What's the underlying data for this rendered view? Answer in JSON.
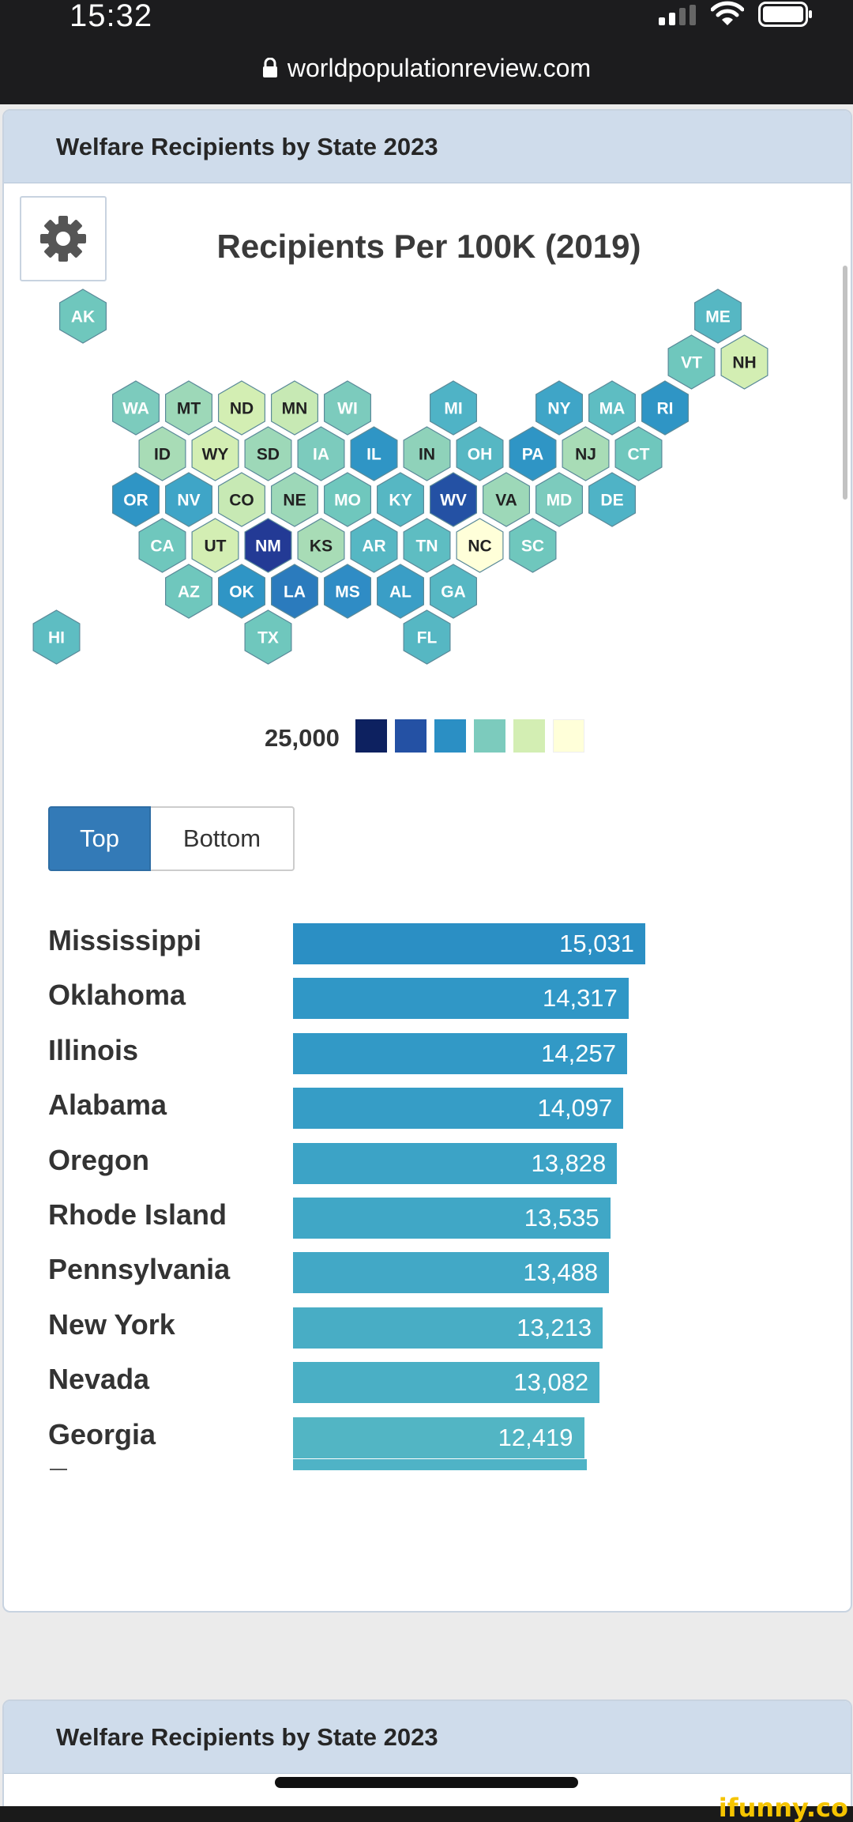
{
  "status_bar": {
    "time": "15:32"
  },
  "browser": {
    "url": "worldpopulationreview.com"
  },
  "card": {
    "title": "Welfare Recipients by State 2023",
    "map_title": "Recipients Per 100K (2019)",
    "legend_label": "25,000",
    "legend_colors": [
      "#0d2160",
      "#2451a4",
      "#2b8fc4",
      "#7ccbbd",
      "#d3eeb3",
      "#ffffd9"
    ],
    "toggle": {
      "top_label": "Top",
      "bottom_label": "Bottom",
      "active": "Top"
    }
  },
  "hex_map": {
    "states": [
      {
        "abbr": "AK",
        "color": "#6fc7bd",
        "text": "#ffffff"
      },
      {
        "abbr": "ME",
        "color": "#56b7c3",
        "text": "#ffffff"
      },
      {
        "abbr": "VT",
        "color": "#6fc7bd",
        "text": "#ffffff"
      },
      {
        "abbr": "NH",
        "color": "#d3eeb3",
        "text": "#222222"
      },
      {
        "abbr": "WA",
        "color": "#7ccbbd",
        "text": "#ffffff"
      },
      {
        "abbr": "MT",
        "color": "#9dd8b8",
        "text": "#222222"
      },
      {
        "abbr": "ND",
        "color": "#d3eeb3",
        "text": "#222222"
      },
      {
        "abbr": "MN",
        "color": "#c7e9b4",
        "text": "#222222"
      },
      {
        "abbr": "WI",
        "color": "#7ccbbd",
        "text": "#ffffff"
      },
      {
        "abbr": "MI",
        "color": "#4fb3c6",
        "text": "#ffffff"
      },
      {
        "abbr": "NY",
        "color": "#3fa5c7",
        "text": "#ffffff"
      },
      {
        "abbr": "MA",
        "color": "#5ebdc2",
        "text": "#ffffff"
      },
      {
        "abbr": "RI",
        "color": "#2f95c5",
        "text": "#ffffff"
      },
      {
        "abbr": "ID",
        "color": "#a8dcb6",
        "text": "#222222"
      },
      {
        "abbr": "WY",
        "color": "#d3eeb3",
        "text": "#222222"
      },
      {
        "abbr": "SD",
        "color": "#9dd8b8",
        "text": "#222222"
      },
      {
        "abbr": "IA",
        "color": "#7ccbbd",
        "text": "#ffffff"
      },
      {
        "abbr": "IL",
        "color": "#2f95c5",
        "text": "#ffffff"
      },
      {
        "abbr": "IN",
        "color": "#8fd2ba",
        "text": "#222222"
      },
      {
        "abbr": "OH",
        "color": "#56b7c3",
        "text": "#ffffff"
      },
      {
        "abbr": "PA",
        "color": "#2f95c5",
        "text": "#ffffff"
      },
      {
        "abbr": "NJ",
        "color": "#a8dcb6",
        "text": "#222222"
      },
      {
        "abbr": "CT",
        "color": "#6fc7bd",
        "text": "#ffffff"
      },
      {
        "abbr": "OR",
        "color": "#2f95c5",
        "text": "#ffffff"
      },
      {
        "abbr": "NV",
        "color": "#3fa5c7",
        "text": "#ffffff"
      },
      {
        "abbr": "CO",
        "color": "#c7e9b4",
        "text": "#222222"
      },
      {
        "abbr": "NE",
        "color": "#9dd8b8",
        "text": "#222222"
      },
      {
        "abbr": "MO",
        "color": "#6fc7bd",
        "text": "#ffffff"
      },
      {
        "abbr": "KY",
        "color": "#56b7c3",
        "text": "#ffffff"
      },
      {
        "abbr": "WV",
        "color": "#2451a4",
        "text": "#ffffff"
      },
      {
        "abbr": "VA",
        "color": "#9dd8b8",
        "text": "#222222"
      },
      {
        "abbr": "MD",
        "color": "#7ccbbd",
        "text": "#ffffff"
      },
      {
        "abbr": "DE",
        "color": "#4fb3c6",
        "text": "#ffffff"
      },
      {
        "abbr": "CA",
        "color": "#6fc7bd",
        "text": "#ffffff"
      },
      {
        "abbr": "UT",
        "color": "#d3eeb3",
        "text": "#222222"
      },
      {
        "abbr": "NM",
        "color": "#233a95",
        "text": "#ffffff"
      },
      {
        "abbr": "KS",
        "color": "#a8dcb6",
        "text": "#222222"
      },
      {
        "abbr": "AR",
        "color": "#56b7c3",
        "text": "#ffffff"
      },
      {
        "abbr": "TN",
        "color": "#5ebdc2",
        "text": "#ffffff"
      },
      {
        "abbr": "NC",
        "color": "#ffffd9",
        "text": "#222222"
      },
      {
        "abbr": "SC",
        "color": "#6fc7bd",
        "text": "#ffffff"
      },
      {
        "abbr": "AZ",
        "color": "#6fc7bd",
        "text": "#ffffff"
      },
      {
        "abbr": "OK",
        "color": "#2f95c5",
        "text": "#ffffff"
      },
      {
        "abbr": "LA",
        "color": "#2b7bbd",
        "text": "#ffffff"
      },
      {
        "abbr": "MS",
        "color": "#2f8cc5",
        "text": "#ffffff"
      },
      {
        "abbr": "AL",
        "color": "#3a9ec6",
        "text": "#ffffff"
      },
      {
        "abbr": "GA",
        "color": "#56b7c3",
        "text": "#ffffff"
      },
      {
        "abbr": "HI",
        "color": "#5ebdc2",
        "text": "#ffffff"
      },
      {
        "abbr": "TX",
        "color": "#6fc7bd",
        "text": "#ffffff"
      },
      {
        "abbr": "FL",
        "color": "#56b7c3",
        "text": "#ffffff"
      }
    ]
  },
  "chart_data": {
    "type": "bar",
    "orientation": "horizontal",
    "categories": [
      "Mississippi",
      "Oklahoma",
      "Illinois",
      "Alabama",
      "Oregon",
      "Rhode Island",
      "Pennsylvania",
      "New York",
      "Nevada",
      "Georgia"
    ],
    "values": [
      15031,
      14317,
      14257,
      14097,
      13828,
      13535,
      13488,
      13213,
      13082,
      12419
    ],
    "value_labels": [
      "15,031",
      "14,317",
      "14,257",
      "14,097",
      "13,828",
      "13,535",
      "13,488",
      "13,213",
      "13,082",
      "12,419"
    ],
    "colors": [
      "#2b8fc4",
      "#3097c6",
      "#3299c6",
      "#369dc6",
      "#3ca3c6",
      "#40a7c6",
      "#42a8c6",
      "#48adc5",
      "#4aafc5",
      "#52b5c4"
    ],
    "xlim": [
      0,
      15031
    ]
  },
  "second_card": {
    "title": "Welfare Recipients by State 2023"
  },
  "watermark": "ifunny.co"
}
